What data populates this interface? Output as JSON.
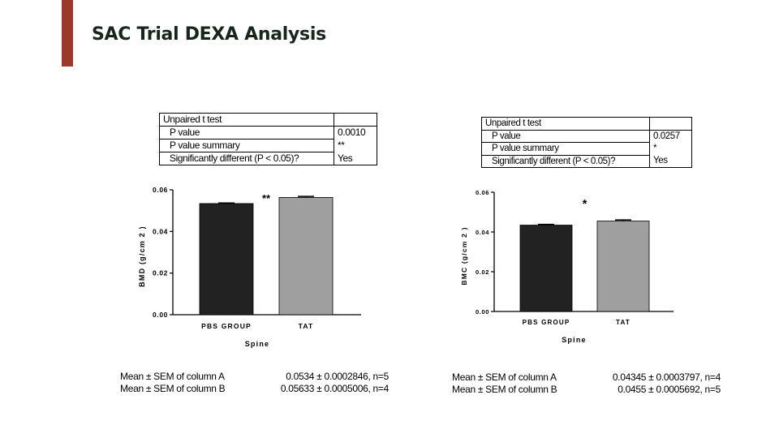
{
  "slide": {
    "title": "SAC Trial DEXA Analysis",
    "accent_color": "#9b3a2c"
  },
  "left_panel": {
    "ttest": {
      "heading": "Unpaired t test",
      "rows": [
        {
          "label": "P value",
          "value": "0.0010"
        },
        {
          "label": "P value summary",
          "value": "**"
        },
        {
          "label": "Significantly different (P < 0.05)?",
          "value": "Yes"
        }
      ]
    },
    "summary": [
      {
        "label": "Mean ± SEM of column A",
        "value": "0.0534 ± 0.0002846, n=5"
      },
      {
        "label": "Mean ± SEM of column B",
        "value": "0.05633 ± 0.0005006, n=4"
      }
    ]
  },
  "right_panel": {
    "ttest": {
      "heading": "Unpaired t test",
      "rows": [
        {
          "label": "P value",
          "value": "0.0257"
        },
        {
          "label": "P value summary",
          "value": "*"
        },
        {
          "label": "Significantly different (P < 0.05)?",
          "value": "Yes"
        }
      ]
    },
    "summary": [
      {
        "label": "Mean ± SEM of column A",
        "value": "0.04345 ± 0.0003797, n=4"
      },
      {
        "label": "Mean ± SEM of column B",
        "value": "0.0455 ± 0.0005692, n=5"
      }
    ]
  },
  "chart_data": [
    {
      "type": "bar",
      "categories": [
        "PBS GROUP",
        "TAT"
      ],
      "values": [
        0.0534,
        0.05633
      ],
      "errors": [
        0.0002846,
        0.0005006
      ],
      "bar_colors": [
        "#222222",
        "#9f9f9f"
      ],
      "significance": "**",
      "title": "",
      "xlabel": "Spine",
      "ylabel": "BMD (g/cm 2 )",
      "ylim": [
        0,
        0.06
      ],
      "yticks": [
        "0.00",
        "0.02",
        "0.04",
        "0.06"
      ],
      "grid": false
    },
    {
      "type": "bar",
      "categories": [
        "PBS GROUP",
        "TAT"
      ],
      "values": [
        0.04345,
        0.0455
      ],
      "errors": [
        0.0003797,
        0.0005692
      ],
      "bar_colors": [
        "#222222",
        "#9f9f9f"
      ],
      "significance": "*",
      "title": "",
      "xlabel": "Spine",
      "ylabel": "BMC (g/cm 2 )",
      "ylim": [
        0,
        0.06
      ],
      "yticks": [
        "0.00",
        "0.02",
        "0.04",
        "0.06"
      ],
      "grid": false
    }
  ]
}
